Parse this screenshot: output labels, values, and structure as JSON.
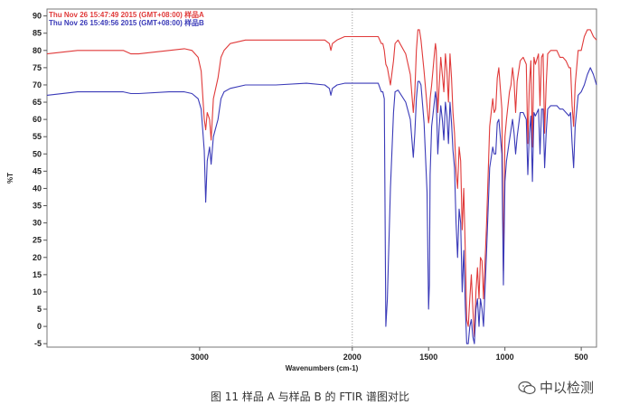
{
  "caption": "图 11 样品 A 与样品 B 的 FTIR 谱图对比",
  "watermark": "中以检测",
  "chart_data": {
    "type": "line",
    "xlabel": "Wavenumbers (cm-1)",
    "ylabel": "%T",
    "xlim": [
      4000,
      400
    ],
    "x_reversed": true,
    "ylim": [
      -6,
      92
    ],
    "x_ticks": [
      3000,
      2000,
      1500,
      1000,
      500
    ],
    "y_ticks": [
      -5,
      0,
      5,
      10,
      15,
      20,
      25,
      30,
      35,
      40,
      45,
      50,
      55,
      60,
      65,
      70,
      75,
      80,
      85,
      90
    ],
    "grid": false,
    "reference_line_x": 2000,
    "legend_position": "top-left",
    "series": [
      {
        "name": "Thu Nov 26 15:47:49 2015 (GMT+08:00) 样品A",
        "color": "#e03a3a",
        "x": [
          4000,
          3800,
          3600,
          3500,
          3450,
          3400,
          3200,
          3100,
          3050,
          3010,
          2990,
          2970,
          2960,
          2950,
          2935,
          2925,
          2910,
          2880,
          2860,
          2840,
          2800,
          2700,
          2500,
          2300,
          2180,
          2150,
          2140,
          2130,
          2100,
          2050,
          1980,
          1900,
          1850,
          1830,
          1810,
          1800,
          1790,
          1780,
          1770,
          1750,
          1730,
          1720,
          1700,
          1650,
          1620,
          1600,
          1590,
          1580,
          1570,
          1560,
          1550,
          1530,
          1510,
          1500,
          1495,
          1490,
          1480,
          1460,
          1455,
          1450,
          1440,
          1430,
          1420,
          1410,
          1400,
          1390,
          1380,
          1370,
          1360,
          1350,
          1340,
          1330,
          1320,
          1310,
          1300,
          1290,
          1280,
          1270,
          1260,
          1250,
          1240,
          1230,
          1220,
          1210,
          1200,
          1190,
          1180,
          1170,
          1160,
          1150,
          1140,
          1120,
          1100,
          1080,
          1070,
          1060,
          1050,
          1040,
          1020,
          1010,
          1000,
          990,
          970,
          960,
          950,
          940,
          930,
          920,
          900,
          880,
          860,
          850,
          840,
          830,
          820,
          810,
          800,
          780,
          770,
          760,
          750,
          740,
          730,
          720,
          700,
          680,
          660,
          640,
          620,
          600,
          580,
          570,
          560,
          550,
          540,
          520,
          500,
          480,
          460,
          440,
          420,
          400
        ],
        "y": [
          79,
          80,
          80,
          80,
          79,
          79,
          80,
          80.5,
          80,
          78,
          74,
          60,
          57,
          62,
          60,
          54,
          66,
          72,
          78,
          80,
          82,
          83,
          83,
          83,
          83,
          82,
          80,
          82,
          83,
          84,
          84,
          84,
          84,
          84,
          82,
          82,
          80,
          76,
          75,
          70,
          77,
          82,
          83,
          79,
          73,
          62,
          68,
          80,
          86,
          86,
          83,
          74,
          64,
          59,
          61,
          66,
          70,
          80,
          82,
          80,
          62,
          70,
          78,
          73,
          68,
          79,
          74,
          65,
          79,
          72,
          62,
          56,
          45,
          40,
          52,
          48,
          28,
          40,
          22,
          2,
          0,
          8,
          15,
          5,
          -3,
          10,
          17,
          8,
          20,
          19,
          8,
          30,
          58,
          66,
          62,
          63,
          72,
          75,
          63,
          16,
          55,
          60,
          68,
          70,
          75,
          71,
          62,
          71,
          77,
          78,
          76,
          53,
          70,
          77,
          52,
          78,
          76,
          79,
          64,
          78,
          79,
          56,
          70,
          79,
          80,
          80,
          80,
          78,
          78,
          77,
          75,
          75,
          64,
          58,
          70,
          80,
          80,
          84,
          86,
          86,
          84,
          83
        ]
      },
      {
        "name": "Thu Nov 26 15:49:56 2015 (GMT+08:00) 样品B",
        "color": "#3a3ab8",
        "x": [
          4000,
          3800,
          3600,
          3500,
          3450,
          3400,
          3200,
          3100,
          3050,
          3010,
          2990,
          2970,
          2960,
          2950,
          2935,
          2925,
          2910,
          2880,
          2860,
          2840,
          2800,
          2700,
          2500,
          2300,
          2180,
          2150,
          2140,
          2130,
          2100,
          2050,
          1980,
          1900,
          1850,
          1830,
          1810,
          1800,
          1790,
          1780,
          1770,
          1750,
          1730,
          1720,
          1700,
          1650,
          1620,
          1600,
          1590,
          1580,
          1570,
          1560,
          1550,
          1530,
          1510,
          1500,
          1495,
          1490,
          1480,
          1460,
          1455,
          1450,
          1440,
          1430,
          1420,
          1410,
          1400,
          1390,
          1380,
          1370,
          1360,
          1350,
          1340,
          1330,
          1320,
          1310,
          1300,
          1290,
          1280,
          1270,
          1260,
          1250,
          1240,
          1230,
          1220,
          1210,
          1200,
          1190,
          1180,
          1170,
          1160,
          1150,
          1140,
          1120,
          1100,
          1080,
          1070,
          1060,
          1050,
          1040,
          1020,
          1010,
          1000,
          990,
          970,
          960,
          950,
          940,
          930,
          920,
          900,
          880,
          860,
          850,
          840,
          830,
          820,
          810,
          800,
          780,
          770,
          760,
          750,
          740,
          730,
          720,
          700,
          680,
          660,
          640,
          620,
          600,
          580,
          570,
          560,
          550,
          540,
          520,
          500,
          480,
          460,
          440,
          420,
          400
        ],
        "y": [
          67,
          68,
          68,
          68,
          67.5,
          67.5,
          68,
          68,
          67.5,
          66,
          63,
          51,
          36,
          48,
          52,
          47,
          55,
          60,
          66,
          68,
          69,
          70,
          70,
          70.5,
          70,
          69,
          67,
          69,
          70,
          70.5,
          70.5,
          70.5,
          70.5,
          70.5,
          68,
          68,
          66,
          0,
          8,
          40,
          62,
          68,
          68.5,
          65,
          60,
          49,
          56,
          66,
          71,
          71,
          70,
          59,
          39,
          5,
          12,
          44,
          58,
          66,
          68,
          66,
          50,
          58,
          64,
          60,
          54,
          65,
          61,
          53,
          65,
          59,
          51,
          46,
          30,
          20,
          34,
          30,
          10,
          22,
          6,
          -5,
          -5,
          0,
          2,
          -3,
          -5,
          5,
          8,
          0,
          8,
          5,
          0,
          22,
          46,
          52,
          50,
          50,
          59,
          60,
          50,
          12,
          42,
          48,
          54,
          57,
          60,
          56,
          50,
          55,
          62,
          62,
          60,
          44,
          56,
          61,
          42,
          62,
          61,
          63,
          50,
          63,
          63,
          46,
          56,
          63,
          64,
          64,
          64,
          63,
          63,
          62,
          61,
          62,
          53,
          46,
          58,
          67,
          68,
          70,
          73,
          75,
          73,
          70
        ]
      }
    ]
  }
}
